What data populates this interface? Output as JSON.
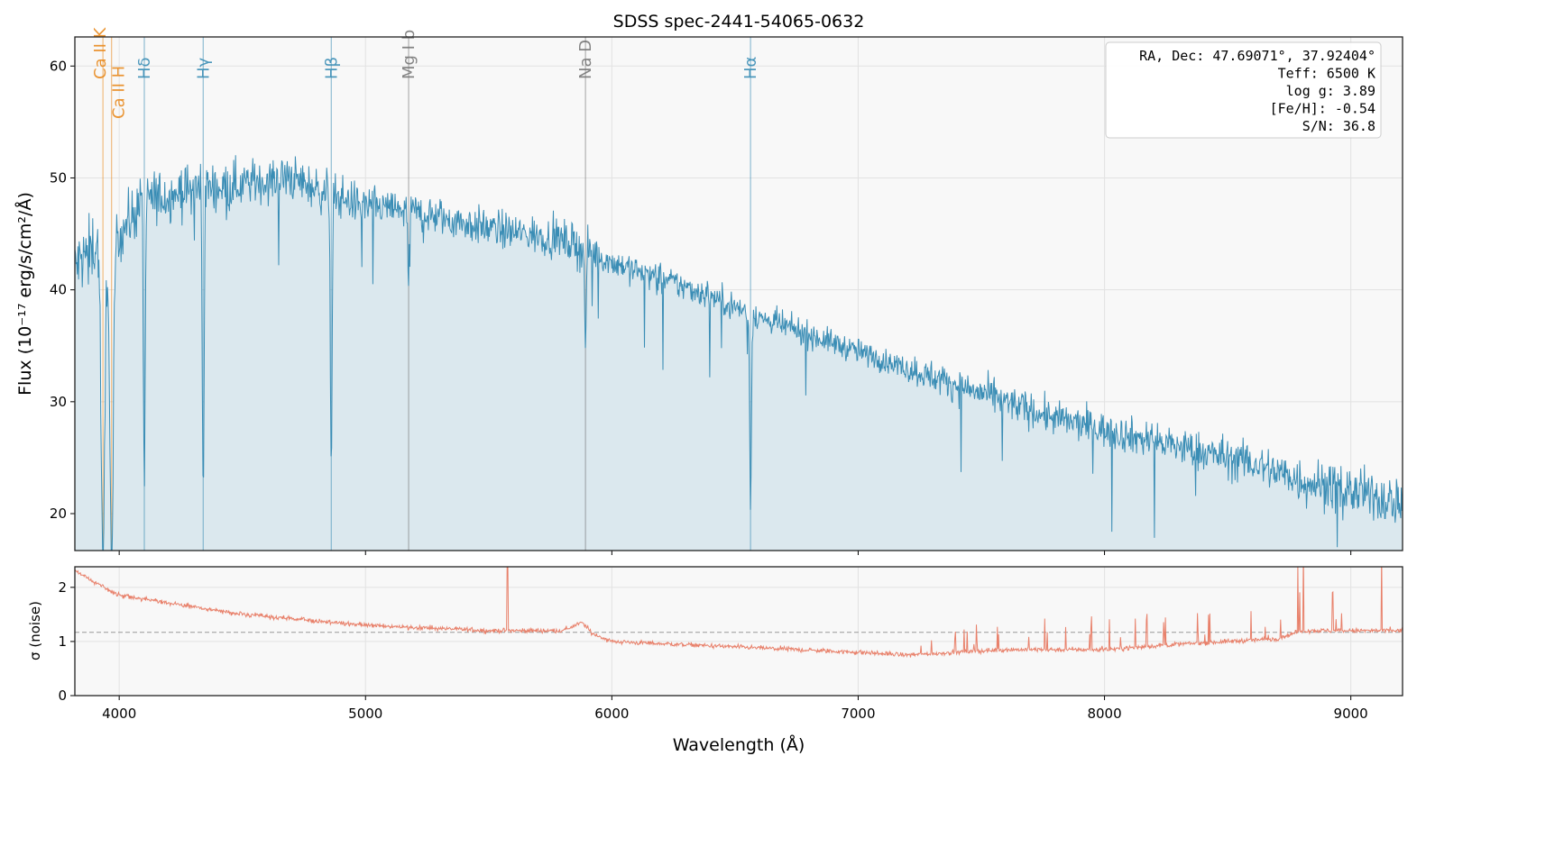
{
  "chart_data": [
    {
      "type": "line",
      "title": "SDSS spec-2441-54065-0632",
      "xlabel": "Wavelength (Å)",
      "ylabel": "Flux (10⁻¹⁷ erg/s/cm²/Å)",
      "xlim": [
        3820,
        9210
      ],
      "ylim": [
        16.7,
        62.6
      ],
      "xticks": [
        4000,
        5000,
        6000,
        7000,
        8000,
        9000
      ],
      "yticks": [
        20,
        30,
        40,
        50,
        60
      ],
      "grid": true,
      "series": [
        {
          "name": "flux",
          "continuum_wavelength": [
            3820,
            3900,
            4000,
            4100,
            4300,
            4500,
            4700,
            4800,
            5000,
            5200,
            5500,
            5800,
            6000,
            6200,
            6400,
            6550,
            6600,
            6800,
            7000,
            7200,
            7400,
            7600,
            7800,
            8000,
            8200,
            8400,
            8600,
            8800,
            9000,
            9210
          ],
          "continuum_flux": [
            42,
            44,
            45,
            48,
            49,
            49.5,
            50,
            49,
            47.5,
            47,
            45.5,
            44.5,
            42.5,
            41,
            39.5,
            38,
            37.5,
            36,
            34.5,
            33,
            31.5,
            30,
            28.5,
            27.5,
            26.5,
            25.5,
            24.5,
            23,
            22,
            21
          ]
        }
      ],
      "lines": [
        {
          "label": "Ca II K",
          "wavelength": 3934,
          "color": "#e8891e",
          "depth": 30
        },
        {
          "label": "Ca II H",
          "wavelength": 3969,
          "color": "#e8891e",
          "depth": 30
        },
        {
          "label": "Hδ",
          "wavelength": 4102,
          "color": "#3a8db5",
          "depth": 26
        },
        {
          "label": "Hγ",
          "wavelength": 4341,
          "color": "#3a8db5",
          "depth": 27
        },
        {
          "label": "Hβ",
          "wavelength": 4861,
          "color": "#3a8db5",
          "depth": 24
        },
        {
          "label": "Mg I b",
          "wavelength": 5175,
          "color": "#777777",
          "depth": 7
        },
        {
          "label": "Na D",
          "wavelength": 5893,
          "color": "#777777",
          "depth": 9
        },
        {
          "label": "Hα",
          "wavelength": 6563,
          "color": "#3a8db5",
          "depth": 17
        }
      ],
      "info": [
        "RA, Dec: 47.69071°, 37.92404°",
        "Teff: 6500 K",
        "log g: 3.89",
        "[Fe/H]: -0.54",
        "S/N: 36.8"
      ]
    },
    {
      "type": "line",
      "ylabel": "σ (noise)",
      "xlim": [
        3820,
        9210
      ],
      "ylim": [
        0,
        2.38
      ],
      "yticks": [
        0,
        1,
        2
      ],
      "reference_line": 1.17,
      "series": [
        {
          "name": "sigma",
          "wavelength": [
            3820,
            4000,
            4500,
            5000,
            5500,
            5800,
            5880,
            5920,
            6000,
            6500,
            7000,
            7200,
            7600,
            8000,
            8300,
            8700,
            8800,
            9210
          ],
          "sigma": [
            2.3,
            1.85,
            1.5,
            1.3,
            1.2,
            1.2,
            1.35,
            1.15,
            1.0,
            0.9,
            0.8,
            0.75,
            0.85,
            0.85,
            0.95,
            1.05,
            1.2,
            1.2
          ]
        }
      ]
    }
  ]
}
